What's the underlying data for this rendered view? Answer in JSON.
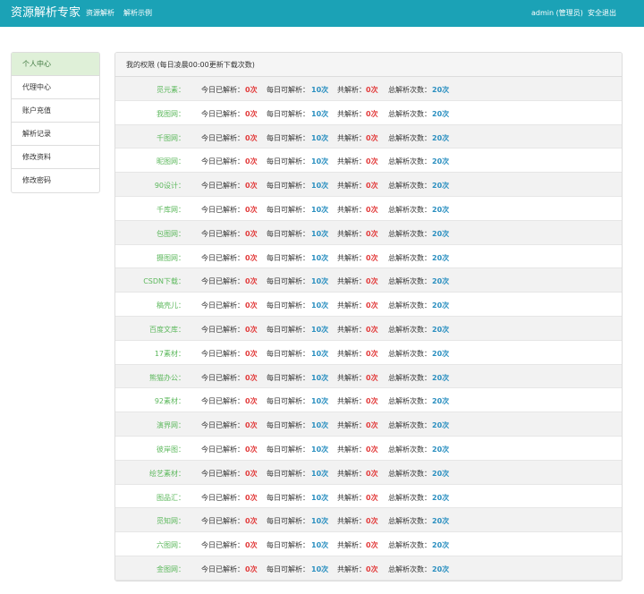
{
  "header": {
    "brand": "资源解析专家",
    "nav": [
      "资源解析",
      "解析示例"
    ],
    "user": "admin (管理员)",
    "logout": "安全退出"
  },
  "sidebar": {
    "items": [
      "个人中心",
      "代理中心",
      "账户充值",
      "解析记录",
      "修改资料",
      "修改密码"
    ],
    "active": 0
  },
  "panel": {
    "title": "我的权限 (每日凌晨00:00更新下载次数)",
    "labels": [
      "今日已解析：",
      "每日可解析：",
      "共解析：",
      "总解析次数："
    ],
    "rows": [
      {
        "name": "觅元素：",
        "values": [
          "0次",
          "10次",
          "0次",
          "20次"
        ]
      },
      {
        "name": "我图网：",
        "values": [
          "0次",
          "10次",
          "0次",
          "20次"
        ]
      },
      {
        "name": "千图网：",
        "values": [
          "0次",
          "10次",
          "0次",
          "20次"
        ]
      },
      {
        "name": "昵图网：",
        "values": [
          "0次",
          "10次",
          "0次",
          "20次"
        ]
      },
      {
        "name": "90设计：",
        "values": [
          "0次",
          "10次",
          "0次",
          "20次"
        ]
      },
      {
        "name": "千库网：",
        "values": [
          "0次",
          "10次",
          "0次",
          "20次"
        ]
      },
      {
        "name": "包图网：",
        "values": [
          "0次",
          "10次",
          "0次",
          "20次"
        ]
      },
      {
        "name": "摄图网：",
        "values": [
          "0次",
          "10次",
          "0次",
          "20次"
        ]
      },
      {
        "name": "CSDN下载：",
        "values": [
          "0次",
          "10次",
          "0次",
          "20次"
        ]
      },
      {
        "name": "稿壳儿：",
        "values": [
          "0次",
          "10次",
          "0次",
          "20次"
        ]
      },
      {
        "name": "百度文库：",
        "values": [
          "0次",
          "10次",
          "0次",
          "20次"
        ]
      },
      {
        "name": "17素材：",
        "values": [
          "0次",
          "10次",
          "0次",
          "20次"
        ]
      },
      {
        "name": "熊猫办公：",
        "values": [
          "0次",
          "10次",
          "0次",
          "20次"
        ]
      },
      {
        "name": "92素材：",
        "values": [
          "0次",
          "10次",
          "0次",
          "20次"
        ]
      },
      {
        "name": "演界网：",
        "values": [
          "0次",
          "10次",
          "0次",
          "20次"
        ]
      },
      {
        "name": "彼岸图：",
        "values": [
          "0次",
          "10次",
          "0次",
          "20次"
        ]
      },
      {
        "name": "绘艺素材：",
        "values": [
          "0次",
          "10次",
          "0次",
          "20次"
        ]
      },
      {
        "name": "图品汇：",
        "values": [
          "0次",
          "10次",
          "0次",
          "20次"
        ]
      },
      {
        "name": "觅知网：",
        "values": [
          "0次",
          "10次",
          "0次",
          "20次"
        ]
      },
      {
        "name": "六图网：",
        "values": [
          "0次",
          "10次",
          "0次",
          "20次"
        ]
      },
      {
        "name": "金图网：",
        "values": [
          "0次",
          "10次",
          "0次",
          "20次"
        ]
      }
    ]
  }
}
